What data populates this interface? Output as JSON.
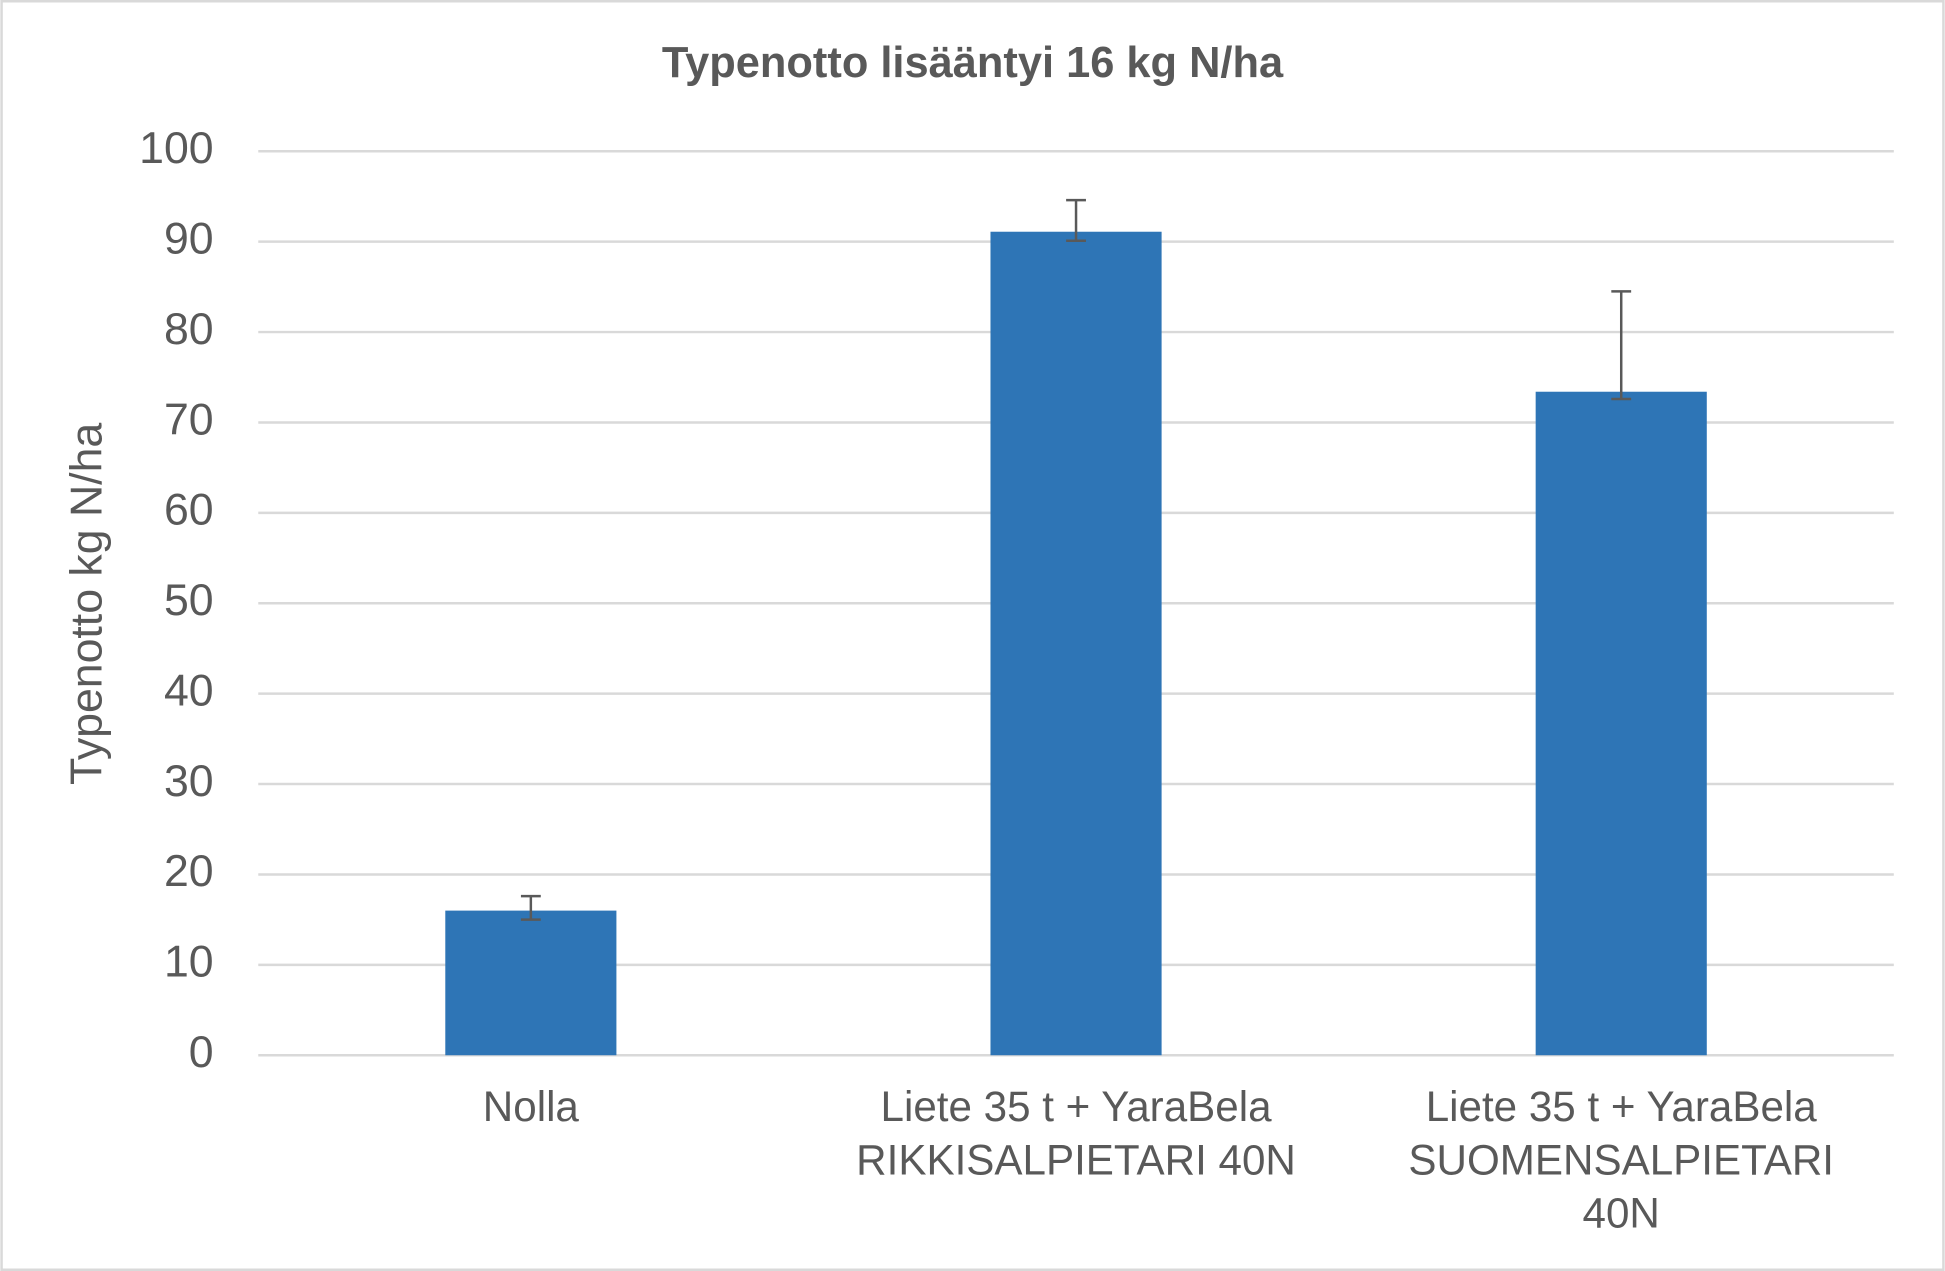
{
  "chart_data": {
    "type": "bar",
    "title": "Typenotto lisääntyi 16 kg N/ha",
    "y_label": "Typenotto kg N/ha",
    "categories": [
      [
        "Nolla"
      ],
      [
        "Liete 35 t + YaraBela",
        "RIKKISALPIETARI 40N"
      ],
      [
        "Liete 35 t + YaraBela",
        "SUOMENSALPIETARI",
        "40N"
      ]
    ],
    "values": [
      16,
      91.1,
      73.4
    ],
    "error_plus": [
      1.6,
      3.5,
      11.1
    ],
    "error_minus": [
      1.0,
      1.0,
      0.8
    ],
    "color": "#2e75b6",
    "ylim": [
      0,
      100
    ],
    "yticks": [
      0,
      10,
      20,
      30,
      40,
      50,
      60,
      70,
      80,
      90,
      100
    ],
    "grid": true
  }
}
